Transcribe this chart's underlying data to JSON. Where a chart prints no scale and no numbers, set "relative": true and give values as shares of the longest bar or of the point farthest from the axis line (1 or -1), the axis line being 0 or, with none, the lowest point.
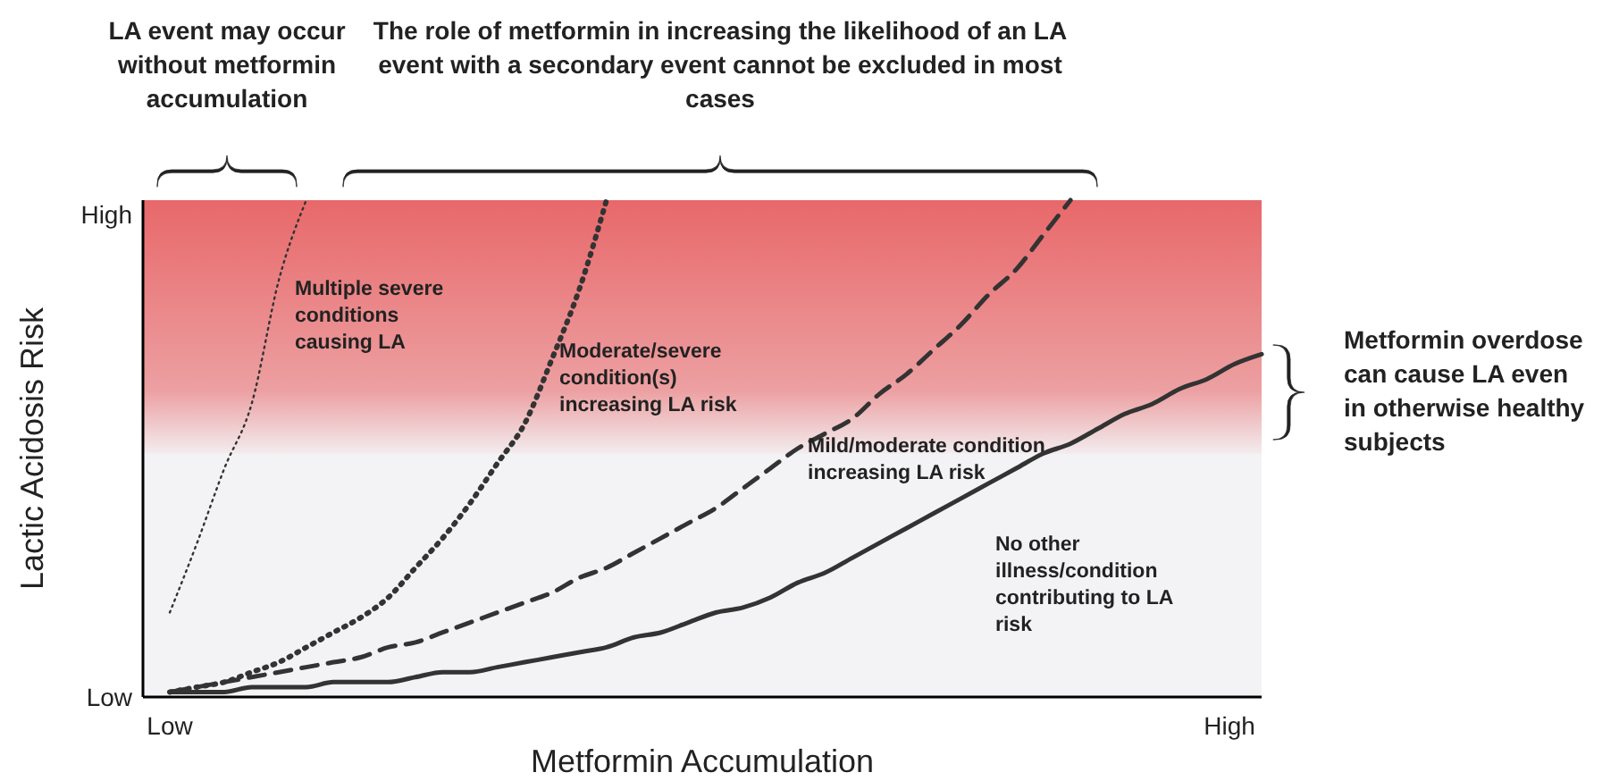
{
  "chart_data": {
    "type": "line",
    "relative": true,
    "xlabel": "Metformin Accumulation",
    "ylabel": "Lactic Acidosis Risk",
    "categories": [
      null,
      null,
      null,
      null,
      null,
      null,
      null,
      null,
      null,
      null,
      null,
      null,
      null,
      null,
      null,
      null,
      null,
      null,
      null,
      null,
      null,
      null,
      null,
      null,
      null,
      null,
      null,
      null,
      null,
      null,
      null,
      null,
      null,
      null,
      null,
      null,
      null,
      null,
      null,
      null,
      null
    ],
    "bands": [
      {
        "axis": "y",
        "from": 0.49,
        "to": 1,
        "color": "#e8686a"
      }
    ],
    "series": [
      {
        "name": "Multiple severe conditions causing LA",
        "color": "#333333",
        "line_style": "dotted",
        "values": [
          0.17,
          0.31,
          0.46,
          0.59,
          0.84,
          1,
          null,
          null,
          null,
          null,
          null,
          null,
          null,
          null,
          null,
          null,
          null,
          null,
          null,
          null,
          null,
          null,
          null,
          null,
          null,
          null,
          null,
          null,
          null,
          null,
          null,
          null,
          null,
          null,
          null,
          null,
          null,
          null,
          null,
          null,
          null
        ]
      },
      {
        "name": "Moderate/severe condition(s) increasing LA risk",
        "color": "#333333",
        "line_style": "dotted",
        "values": [
          0.01,
          0.02,
          0.03,
          0.05,
          0.07,
          0.1,
          0.13,
          0.16,
          0.2,
          0.26,
          0.32,
          0.39,
          0.47,
          0.55,
          0.68,
          0.82,
          1,
          null,
          null,
          null,
          null,
          null,
          null,
          null,
          null,
          null,
          null,
          null,
          null,
          null,
          null,
          null,
          null,
          null,
          null,
          null,
          null,
          null,
          null,
          null,
          null
        ]
      },
      {
        "name": "Mild/moderate condition increasing LA risk",
        "color": "#333333",
        "line_style": "dashed",
        "values": [
          0.01,
          0.02,
          0.03,
          0.04,
          0.05,
          0.06,
          0.07,
          0.08,
          0.1,
          0.11,
          0.13,
          0.15,
          0.17,
          0.19,
          0.21,
          0.24,
          0.26,
          0.29,
          0.32,
          0.35,
          0.38,
          0.42,
          0.46,
          0.5,
          0.53,
          0.56,
          0.61,
          0.65,
          0.7,
          0.75,
          0.81,
          0.86,
          0.93,
          1,
          null,
          null,
          null,
          null,
          null,
          null,
          null
        ]
      },
      {
        "name": "No other illness/condition contributing to LA risk",
        "color": "#333333",
        "line_style": "solid",
        "values": [
          0.01,
          0.01,
          0.01,
          0.02,
          0.02,
          0.02,
          0.03,
          0.03,
          0.03,
          0.04,
          0.05,
          0.05,
          0.06,
          0.07,
          0.08,
          0.09,
          0.1,
          0.12,
          0.13,
          0.15,
          0.17,
          0.18,
          0.2,
          0.23,
          0.25,
          0.28,
          0.31,
          0.34,
          0.37,
          0.4,
          0.43,
          0.46,
          0.49,
          0.51,
          0.54,
          0.57,
          0.59,
          0.62,
          0.64,
          0.67,
          0.69
        ]
      }
    ],
    "annotations": [
      "LA event may occur without metformin accumulation",
      "The role of metformin in increasing the likelihood of an LA event with a secondary event cannot be excluded in most cases",
      "Metformin overdose can cause LA even in otherwise healthy subjects",
      "Low",
      "High",
      "Low",
      "High"
    ]
  }
}
